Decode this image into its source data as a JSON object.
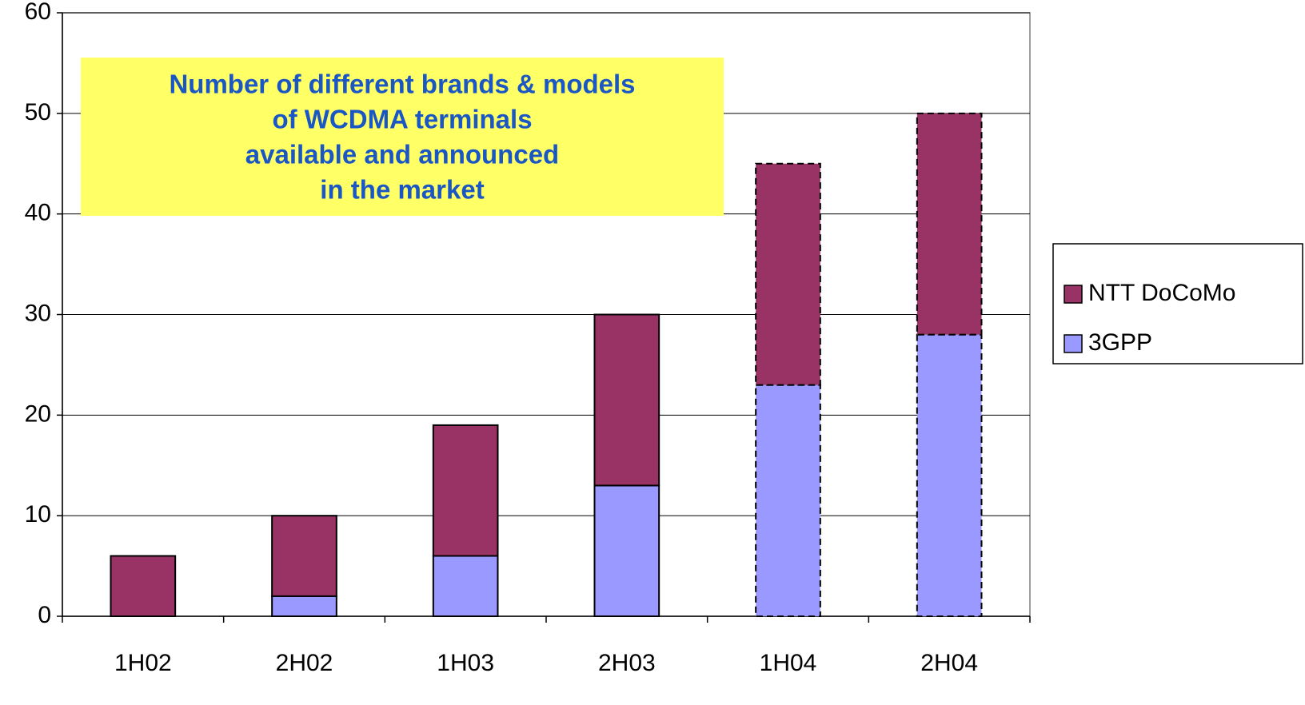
{
  "chart_data": {
    "type": "stacked_bar",
    "annotation": [
      "Number of different brands & models",
      "of WCDMA terminals",
      "available and announced",
      "in the market"
    ],
    "categories": [
      "1H02",
      "2H02",
      "1H03",
      "2H03",
      "1H04",
      "2H04"
    ],
    "series": [
      {
        "name": "3GPP",
        "color": "#9999ff",
        "values": [
          0,
          2,
          6,
          13,
          23,
          28
        ]
      },
      {
        "name": "NTT DoCoMo",
        "color": "#993366",
        "values": [
          6,
          8,
          13,
          17,
          22,
          22
        ]
      }
    ],
    "dashed": [
      false,
      false,
      false,
      false,
      true,
      true
    ],
    "ylim": [
      0,
      60
    ],
    "yticks": [
      0,
      10,
      20,
      30,
      40,
      50,
      60
    ],
    "grid": true,
    "legend": "right"
  }
}
